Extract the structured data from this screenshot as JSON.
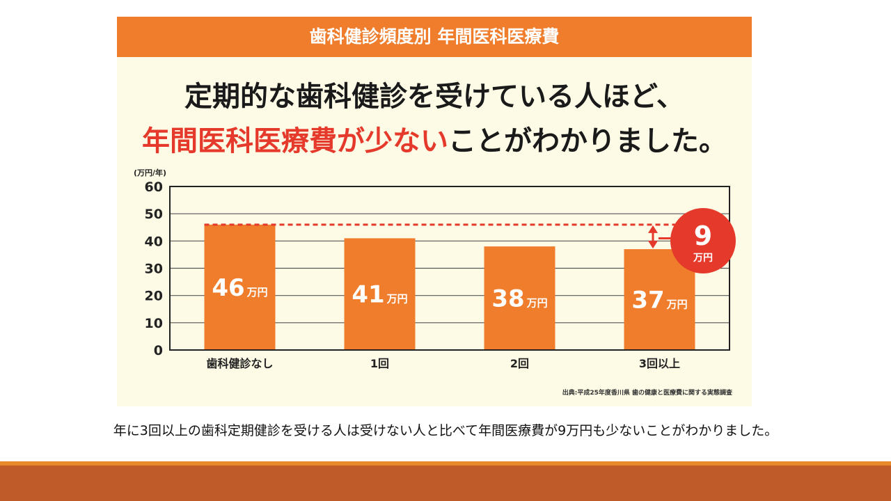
{
  "header": {
    "title": "歯科健診頻度別 年間医科医療費"
  },
  "headline": {
    "line1": "定期的な歯科健診を受けている人ほど、",
    "line2_highlight": "年間医科医療費が少ない",
    "line2_rest": "ことがわかりました。"
  },
  "source": "出典:平成25年度香川県 歯の健康と医療費に関する実態調査",
  "caption": "年に3回以上の歯科定期健診を受ける人は受けない人と比べて年間医療費が9万円も少ないことがわかりました。",
  "colors": {
    "bar": "#ef7d2c",
    "accent_red": "#e53a2b",
    "header_bg": "#ef7d2c",
    "panel_bg": "#fdfbe6",
    "band_dark": "#bf5a29",
    "band_light": "#e8892a"
  },
  "chart_data": {
    "type": "bar",
    "ylabel": "(万円/年)",
    "ylim": [
      0,
      60
    ],
    "yticks": [
      0,
      10,
      20,
      30,
      40,
      50,
      60
    ],
    "grid": true,
    "categories": [
      "歯科健診なし",
      "1回",
      "2回",
      "3回以上"
    ],
    "values": [
      46,
      41,
      38,
      37
    ],
    "data_labels": [
      {
        "num": "46",
        "unit": "万円"
      },
      {
        "num": "41",
        "unit": "万円"
      },
      {
        "num": "38",
        "unit": "万円"
      },
      {
        "num": "37",
        "unit": "万円"
      }
    ],
    "annotation": {
      "num": "9",
      "unit": "万円"
    }
  }
}
